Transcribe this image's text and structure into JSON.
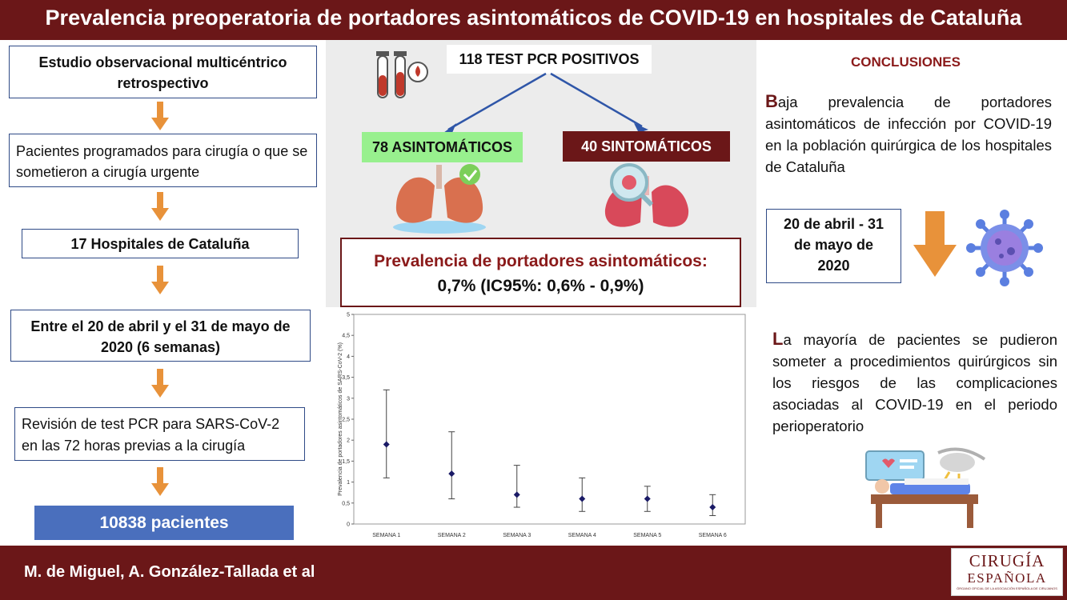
{
  "header": {
    "title": "Prevalencia preoperatoria de portadores asintomáticos de COVID-19 en hospitales de Cataluña"
  },
  "flow": {
    "step1": "Estudio observacional multicéntrico retrospectivo",
    "step2": "Pacientes programados para cirugía o que se sometieron a cirugía urgente",
    "step3": "17 Hospitales de Cataluña",
    "step4": "Entre  el 20 de abril y el 31 de mayo de 2020  (6 semanas)",
    "step5": "Revisión de test PCR para SARS-CoV-2 en las 72 horas previas a la cirugía",
    "result": "10838 pacientes"
  },
  "center": {
    "total": "118 TEST PCR POSITIVOS",
    "asym": "78 ASINTOMÁTICOS",
    "sym": "40 SINTOMÁTICOS",
    "prev_title": "Prevalencia de portadores asintomáticos:",
    "prev_value": "0,7% (IC95%: 0,6% - 0,9%)"
  },
  "conclusions": {
    "title": "CONCLUSIONES",
    "p1_initial": "B",
    "p1_rest": "aja prevalencia de portadores asintomáticos de infección por COVID-19 en la población quirúrgica de los hospitales de Cataluña",
    "date_box": "20 de abril - 31 de mayo de 2020",
    "p2_initial": "L",
    "p2_rest": "a mayoría de pacientes se pudieron someter a procedimientos quirúrgicos sin los riesgos de las complicaciones asociadas al COVID-19 en el periodo perioperatorio"
  },
  "footer": {
    "authors": "M. de Miguel, A. González-Tallada et al",
    "logo_line1": "CIRUGÍA",
    "logo_line2": "ESPAÑOLA",
    "logo_line3": "ÓRGANO OFICIAL DE LA ASOCIACIÓN ESPAÑOLA DE CIRUJANOS"
  },
  "colors": {
    "brand": "#6b1718",
    "box_border": "#2f4a86",
    "arrow": "#e8923a",
    "asym_bg": "#98f08e",
    "result_bg": "#4a6fbd",
    "marker": "#1a1a66"
  },
  "chart_data": {
    "type": "scatter",
    "title": "",
    "xlabel": "",
    "ylabel": "Prevalencia de portadores asintomáticos de SARS-CoV-2 (%)",
    "categories": [
      "SEMANA 1",
      "SEMANA 2",
      "SEMANA 3",
      "SEMANA 4",
      "SEMANA 5",
      "SEMANA 6"
    ],
    "values": [
      1.9,
      1.2,
      0.7,
      0.6,
      0.6,
      0.4
    ],
    "ci_low": [
      1.1,
      0.6,
      0.4,
      0.3,
      0.3,
      0.2
    ],
    "ci_high": [
      3.2,
      2.2,
      1.4,
      1.1,
      0.9,
      0.7
    ],
    "ylim": [
      0,
      5
    ],
    "yticks": [
      "0",
      "0,5",
      "1",
      "1,5",
      "2",
      "2,5",
      "3",
      "3,5",
      "4",
      "4,5",
      "5"
    ],
    "grid": false
  }
}
